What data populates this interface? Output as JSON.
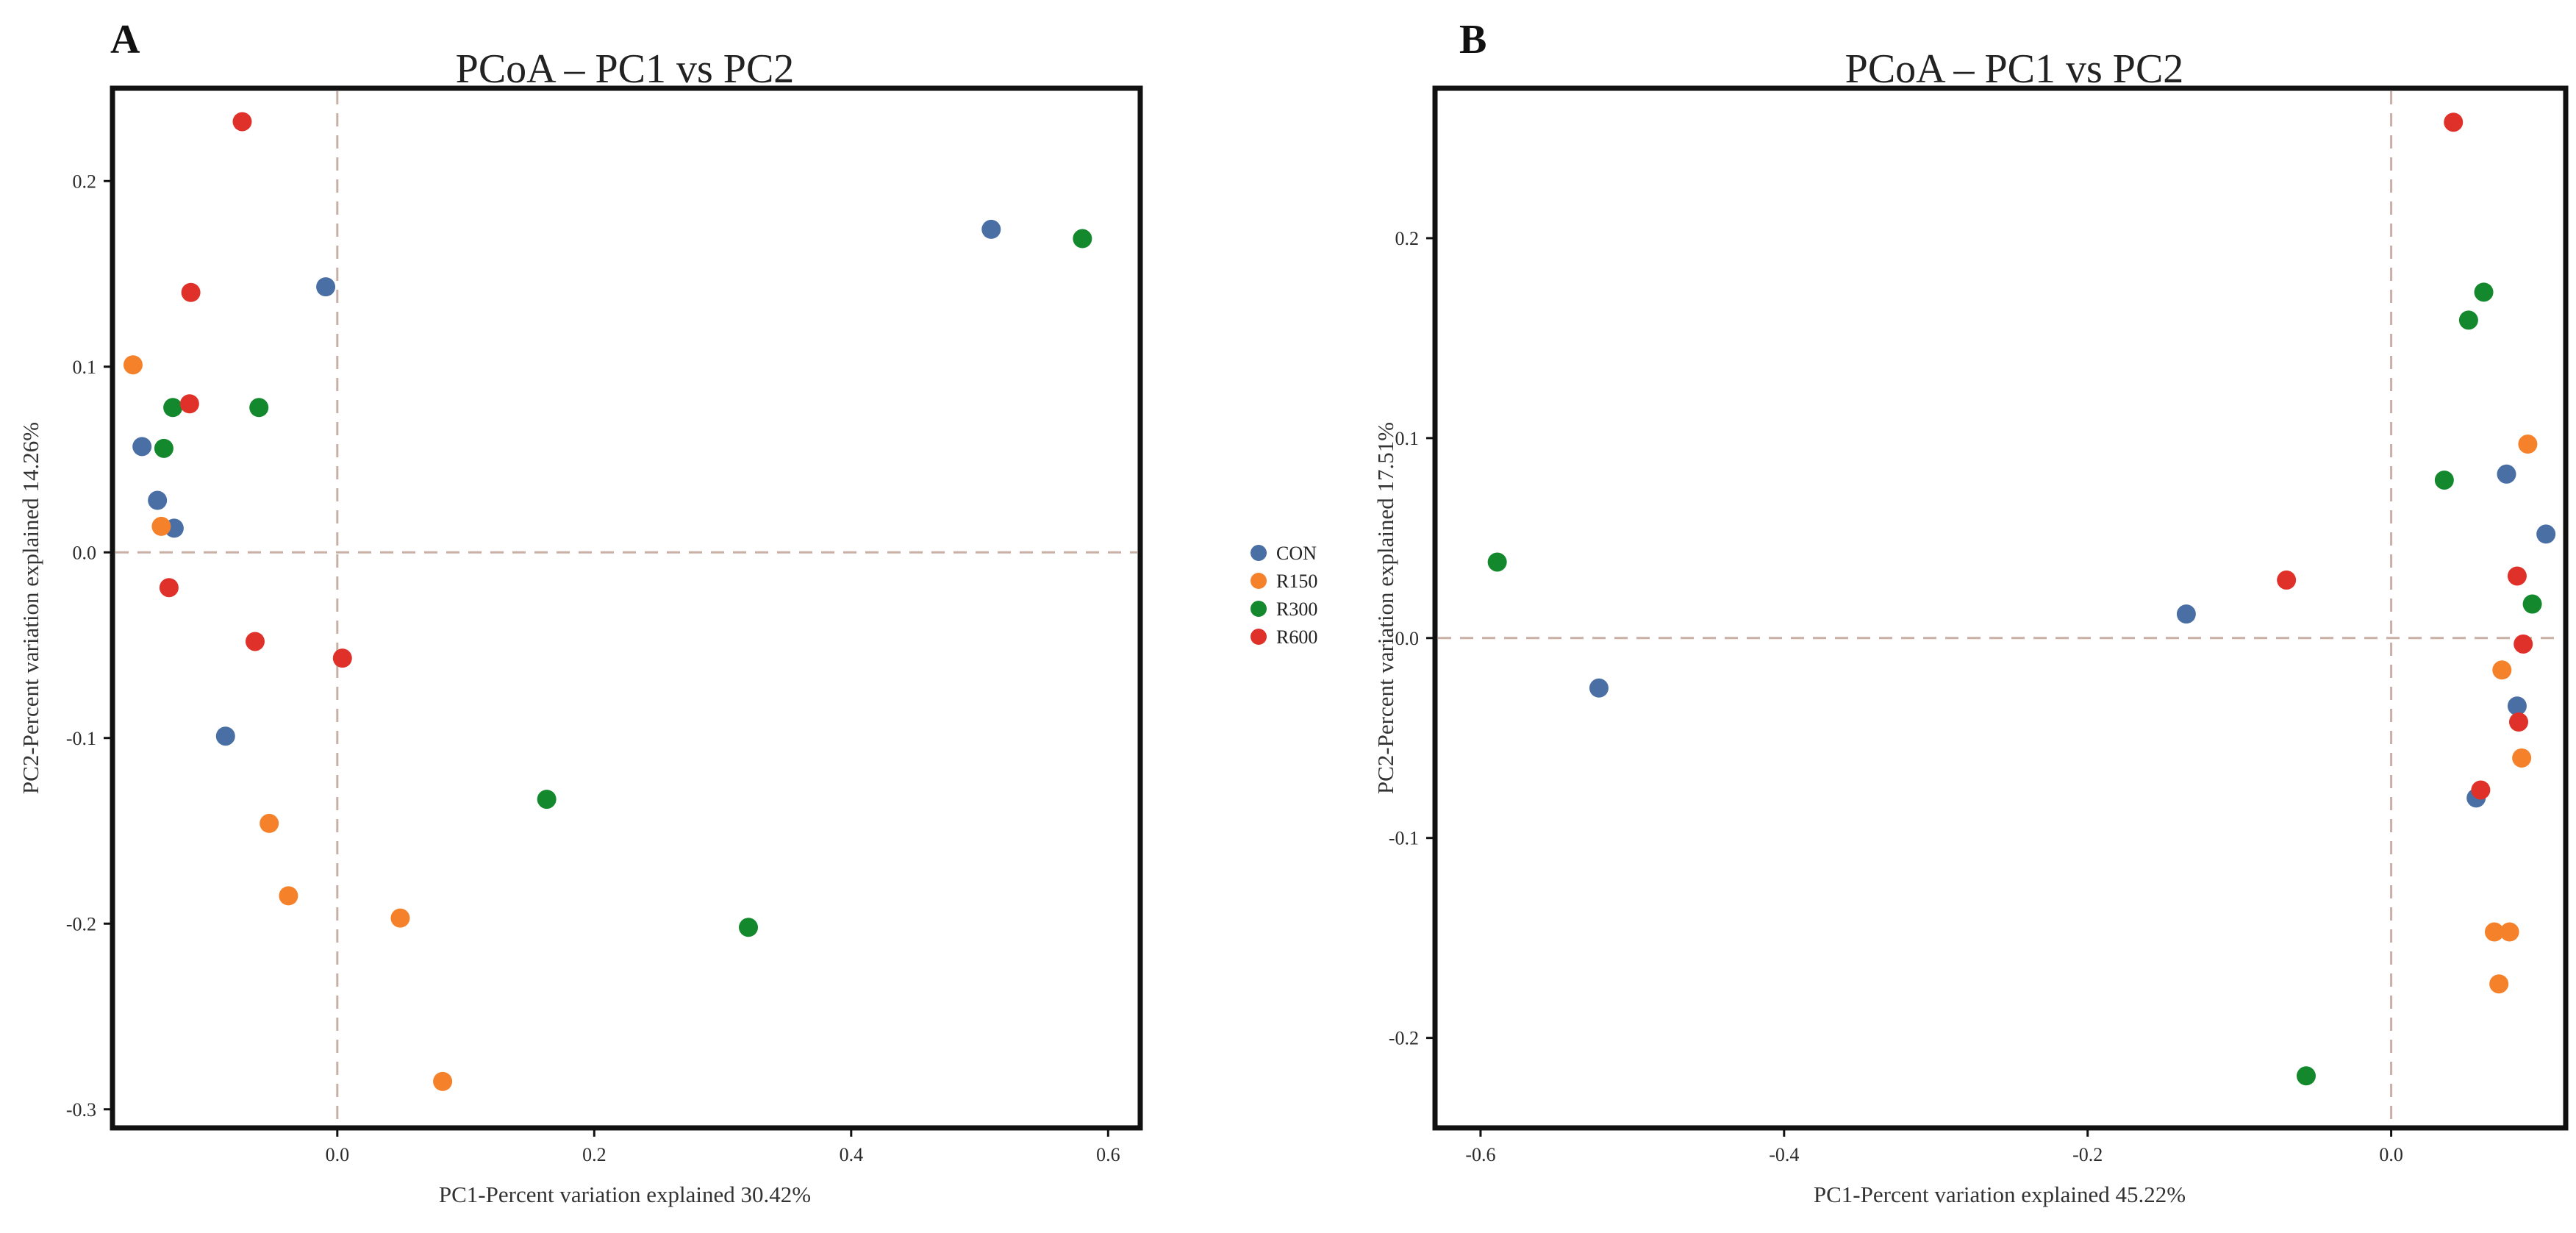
{
  "legend": {
    "groups": [
      {
        "name": "CON",
        "color": "#4a6fa5"
      },
      {
        "name": "R150",
        "color": "#f5822a"
      },
      {
        "name": "R300",
        "color": "#14882c"
      },
      {
        "name": "R600",
        "color": "#e0302a"
      }
    ]
  },
  "chart_data": [
    {
      "type": "scatter",
      "panel_label": "A",
      "title": "PCoA – PC1 vs PC2",
      "xlabel": "PC1-Percent variation explained 30.42%",
      "ylabel": "PC2-Percent variation explained 14.26%",
      "xlim": [
        -0.175,
        0.625
      ],
      "ylim": [
        -0.31,
        0.25
      ],
      "xticks": [
        0.0,
        0.2,
        0.4,
        0.6
      ],
      "xtick_labels": [
        "0.0",
        "0.2",
        "0.4",
        "0.6"
      ],
      "yticks": [
        -0.3,
        -0.2,
        -0.1,
        0.0,
        0.1,
        0.2
      ],
      "ytick_labels": [
        "-0.3",
        "-0.2",
        "-0.1",
        "0.0",
        "0.1",
        "0.2"
      ],
      "reference_lines": {
        "x": 0.0,
        "y": 0.0
      },
      "series": [
        {
          "name": "CON",
          "color": "#4a6fa5",
          "points": [
            [
              -0.152,
              0.057
            ],
            [
              -0.14,
              0.028
            ],
            [
              -0.127,
              0.013
            ],
            [
              -0.087,
              -0.099
            ],
            [
              -0.009,
              0.143
            ],
            [
              0.509,
              0.174
            ]
          ]
        },
        {
          "name": "R150",
          "color": "#f5822a",
          "points": [
            [
              -0.159,
              0.101
            ],
            [
              -0.137,
              0.014
            ],
            [
              -0.053,
              -0.146
            ],
            [
              -0.038,
              -0.185
            ],
            [
              0.049,
              -0.197
            ],
            [
              0.082,
              -0.285
            ]
          ]
        },
        {
          "name": "R300",
          "color": "#14882c",
          "points": [
            [
              -0.135,
              0.056
            ],
            [
              -0.128,
              0.078
            ],
            [
              -0.061,
              0.078
            ],
            [
              0.163,
              -0.133
            ],
            [
              0.32,
              -0.202
            ],
            [
              0.58,
              0.169
            ]
          ]
        },
        {
          "name": "R600",
          "color": "#e0302a",
          "points": [
            [
              -0.074,
              0.232
            ],
            [
              -0.114,
              0.14
            ],
            [
              -0.115,
              0.08
            ],
            [
              -0.131,
              -0.019
            ],
            [
              -0.064,
              -0.048
            ],
            [
              0.004,
              -0.057
            ]
          ]
        }
      ]
    },
    {
      "type": "scatter",
      "panel_label": "B",
      "title": "PCoA – PC1 vs PC2",
      "xlabel": "PC1-Percent variation explained 45.22%",
      "ylabel": "PC2-Percent variation explained 17.51%",
      "xlim": [
        -0.63,
        0.115
      ],
      "ylim": [
        -0.245,
        0.275
      ],
      "xticks": [
        -0.6,
        -0.4,
        -0.2,
        0.0
      ],
      "xtick_labels": [
        "-0.6",
        "-0.4",
        "-0.2",
        "0.0"
      ],
      "yticks": [
        -0.2,
        -0.1,
        0.0,
        0.1,
        0.2
      ],
      "ytick_labels": [
        "-0.2",
        "-0.1",
        "0.0",
        "0.1",
        "0.2"
      ],
      "reference_lines": {
        "x": 0.0,
        "y": 0.0
      },
      "series": [
        {
          "name": "CON",
          "color": "#4a6fa5",
          "points": [
            [
              -0.522,
              -0.025
            ],
            [
              -0.135,
              0.012
            ],
            [
              0.076,
              0.082
            ],
            [
              0.102,
              0.052
            ],
            [
              0.083,
              -0.034
            ],
            [
              0.056,
              -0.08
            ]
          ]
        },
        {
          "name": "R150",
          "color": "#f5822a",
          "points": [
            [
              0.09,
              0.097
            ],
            [
              0.073,
              -0.016
            ],
            [
              0.086,
              -0.06
            ],
            [
              0.068,
              -0.147
            ],
            [
              0.078,
              -0.147
            ],
            [
              0.071,
              -0.173
            ]
          ]
        },
        {
          "name": "R300",
          "color": "#14882c",
          "points": [
            [
              -0.589,
              0.038
            ],
            [
              0.061,
              0.173
            ],
            [
              0.051,
              0.159
            ],
            [
              0.035,
              0.079
            ],
            [
              0.093,
              0.017
            ],
            [
              -0.056,
              -0.219
            ]
          ]
        },
        {
          "name": "R600",
          "color": "#e0302a",
          "points": [
            [
              0.041,
              0.258
            ],
            [
              -0.069,
              0.029
            ],
            [
              0.083,
              0.031
            ],
            [
              0.087,
              -0.003
            ],
            [
              0.084,
              -0.042
            ],
            [
              0.059,
              -0.076
            ]
          ]
        }
      ]
    }
  ]
}
